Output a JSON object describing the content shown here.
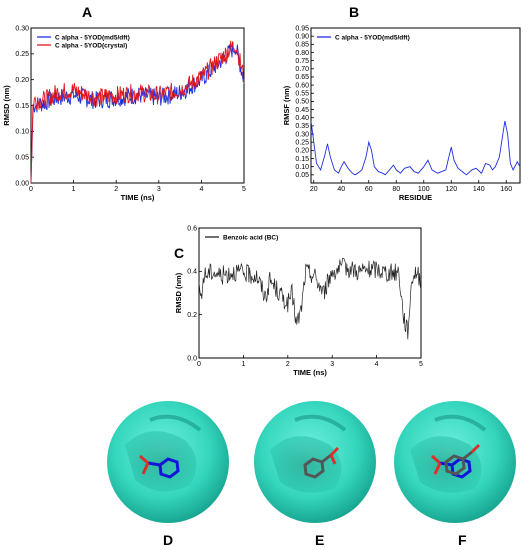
{
  "panel_labels": {
    "a": "A",
    "b": "B",
    "c": "C",
    "d": "D",
    "e": "E",
    "f": "F"
  },
  "colors": {
    "blue": "#1f2fe0",
    "red": "#e0161b",
    "black": "#222222",
    "surface": "#3fe0c8",
    "surface_dark": "#15a894"
  },
  "chart_data": [
    {
      "id": "A",
      "type": "line",
      "xlabel": "TIME (ns)",
      "ylabel": "RMSD (nm)",
      "xlim": [
        0,
        5
      ],
      "ylim": [
        0,
        0.3
      ],
      "xticks": [
        "0",
        "1",
        "2",
        "3",
        "4",
        "5"
      ],
      "yticks": [
        "0.00",
        "0.05",
        "0.10",
        "0.15",
        "0.20",
        "0.25",
        "0.30"
      ],
      "legend_position": "top-left",
      "series": [
        {
          "name": "C alpha - 5YOD(md5/dft)",
          "color": "#1f2fe0",
          "x": [
            0,
            0.05,
            0.3,
            0.6,
            1.0,
            1.5,
            2.0,
            2.5,
            3.0,
            3.5,
            4.0,
            4.5,
            4.8,
            5.0
          ],
          "y": [
            0.0,
            0.15,
            0.155,
            0.165,
            0.17,
            0.16,
            0.165,
            0.17,
            0.165,
            0.175,
            0.2,
            0.24,
            0.265,
            0.2
          ]
        },
        {
          "name": "C alpha - 5YOD(crystal)",
          "color": "#e0161b",
          "x": [
            0,
            0.05,
            0.3,
            0.6,
            1.0,
            1.5,
            2.0,
            2.5,
            3.0,
            3.5,
            4.0,
            4.5,
            4.8,
            5.0
          ],
          "y": [
            0.0,
            0.16,
            0.16,
            0.175,
            0.18,
            0.165,
            0.17,
            0.175,
            0.17,
            0.18,
            0.205,
            0.245,
            0.27,
            0.205
          ]
        }
      ]
    },
    {
      "id": "B",
      "type": "line",
      "xlabel": "RESIDUE",
      "ylabel": "RMSF (nm)",
      "xlim": [
        18,
        170
      ],
      "ylim": [
        0,
        0.95
      ],
      "xticks": [
        "20",
        "40",
        "60",
        "80",
        "100",
        "120",
        "140",
        "160"
      ],
      "yticks": [
        "0.05",
        "0.10",
        "0.15",
        "0.20",
        "0.25",
        "0.30",
        "0.35",
        "0.40",
        "0.45",
        "0.50",
        "0.55",
        "0.60",
        "0.65",
        "0.70",
        "0.75",
        "0.80",
        "0.85",
        "0.90",
        "0.95"
      ],
      "legend_position": "top-left",
      "series": [
        {
          "name": "C alpha - 5YOD(md5/dft)",
          "color": "#1f2fe0",
          "x": [
            18,
            20,
            22,
            25,
            28,
            30,
            32,
            35,
            38,
            40,
            42,
            45,
            48,
            50,
            52,
            55,
            58,
            60,
            62,
            64,
            67,
            70,
            72,
            75,
            78,
            80,
            83,
            86,
            90,
            93,
            96,
            100,
            103,
            106,
            110,
            113,
            116,
            118,
            120,
            122,
            125,
            128,
            131,
            135,
            138,
            142,
            145,
            148,
            150,
            152,
            155,
            157,
            159,
            161,
            163,
            165,
            168,
            170
          ],
          "y": [
            0.38,
            0.25,
            0.12,
            0.08,
            0.17,
            0.24,
            0.16,
            0.08,
            0.06,
            0.1,
            0.13,
            0.09,
            0.06,
            0.05,
            0.06,
            0.08,
            0.16,
            0.25,
            0.2,
            0.1,
            0.07,
            0.06,
            0.05,
            0.08,
            0.11,
            0.08,
            0.06,
            0.09,
            0.1,
            0.07,
            0.06,
            0.1,
            0.14,
            0.08,
            0.06,
            0.07,
            0.08,
            0.15,
            0.22,
            0.14,
            0.09,
            0.07,
            0.05,
            0.08,
            0.09,
            0.06,
            0.12,
            0.11,
            0.08,
            0.1,
            0.16,
            0.27,
            0.38,
            0.3,
            0.12,
            0.08,
            0.13,
            0.1
          ]
        }
      ]
    },
    {
      "id": "C",
      "type": "line",
      "xlabel": "TIME (ns)",
      "ylabel": "RMSD (nm)",
      "xlim": [
        0,
        5
      ],
      "ylim": [
        0,
        0.6
      ],
      "xticks": [
        "0",
        "1",
        "2",
        "3",
        "4",
        "5"
      ],
      "yticks": [
        "0.0",
        "0.2",
        "0.4",
        "0.6"
      ],
      "legend_position": "top-left",
      "series": [
        {
          "name": "Benzoic acid (BC)",
          "color": "#222222",
          "x": [
            0,
            0.05,
            0.1,
            0.3,
            0.5,
            0.8,
            1.0,
            1.3,
            1.5,
            1.6,
            1.8,
            2.0,
            2.1,
            2.2,
            2.3,
            2.4,
            2.6,
            2.8,
            3.0,
            3.3,
            3.6,
            4.0,
            4.3,
            4.5,
            4.6,
            4.7,
            4.8,
            4.9,
            5.0
          ],
          "y": [
            0.35,
            0.25,
            0.38,
            0.4,
            0.38,
            0.4,
            0.39,
            0.38,
            0.28,
            0.36,
            0.3,
            0.25,
            0.3,
            0.15,
            0.22,
            0.4,
            0.38,
            0.3,
            0.4,
            0.42,
            0.4,
            0.41,
            0.39,
            0.4,
            0.2,
            0.12,
            0.38,
            0.4,
            0.36
          ]
        }
      ]
    }
  ]
}
